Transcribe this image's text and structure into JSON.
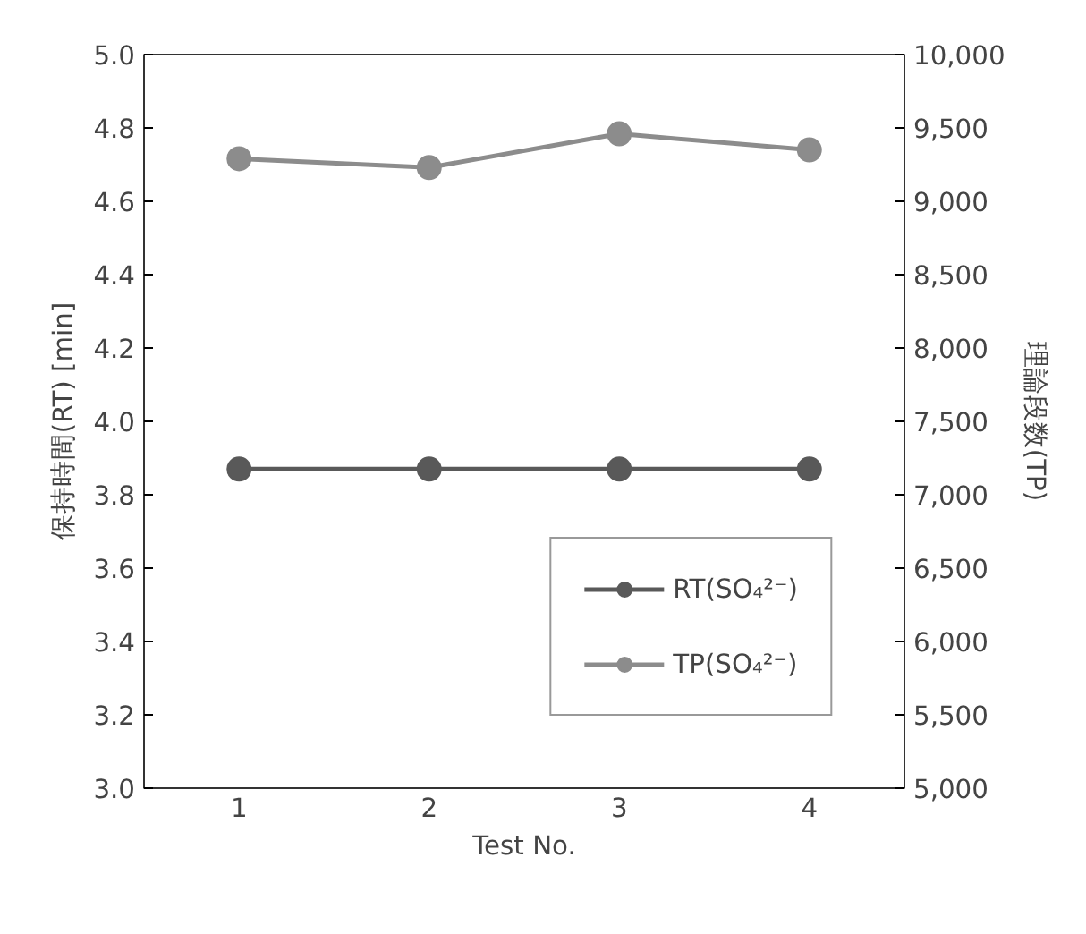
{
  "chart_data": {
    "type": "line",
    "xlabel": "Test No.",
    "ylabel": "保持時間(RT) [min]",
    "y2label": "理論段数(TP)",
    "categories": [
      "1",
      "2",
      "3",
      "4"
    ],
    "series": [
      {
        "name": "RT(SO₄²⁻)",
        "color": "#595959",
        "values": [
          3.87,
          3.87,
          3.87,
          3.87
        ]
      },
      {
        "name": "TP(SO₄²⁻)",
        "color": "#8c8c8c",
        "values": [
          9290,
          9230,
          9460,
          9350
        ],
        "axis": "y2"
      }
    ],
    "ylim": [
      3.0,
      5.0
    ],
    "yticks": [
      {
        "value": 3.0,
        "label": "3.0"
      },
      {
        "value": 3.2,
        "label": "3.2"
      },
      {
        "value": 3.4,
        "label": "3.4"
      },
      {
        "value": 3.6,
        "label": "3.6"
      },
      {
        "value": 3.8,
        "label": "3.8"
      },
      {
        "value": 4.0,
        "label": "4.0"
      },
      {
        "value": 4.2,
        "label": "4.2"
      },
      {
        "value": 4.4,
        "label": "4.4"
      },
      {
        "value": 4.6,
        "label": "4.6"
      },
      {
        "value": 4.8,
        "label": "4.8"
      },
      {
        "value": 5.0,
        "label": "5.0"
      }
    ],
    "y2lim": [
      5000,
      10000
    ],
    "y2ticks": [
      {
        "value": 5000,
        "label": "5,000"
      },
      {
        "value": 5500,
        "label": "5,500"
      },
      {
        "value": 6000,
        "label": "6,000"
      },
      {
        "value": 6500,
        "label": "6,500"
      },
      {
        "value": 7000,
        "label": "7,000"
      },
      {
        "value": 7500,
        "label": "7,500"
      },
      {
        "value": 8000,
        "label": "8,000"
      },
      {
        "value": 8500,
        "label": "8,500"
      },
      {
        "value": 9000,
        "label": "9,000"
      },
      {
        "value": 9500,
        "label": "9,500"
      },
      {
        "value": 10000,
        "label": "10,000"
      }
    ],
    "grid": false,
    "legend": "bottom right",
    "marker": "circle",
    "line_style": "solid"
  }
}
